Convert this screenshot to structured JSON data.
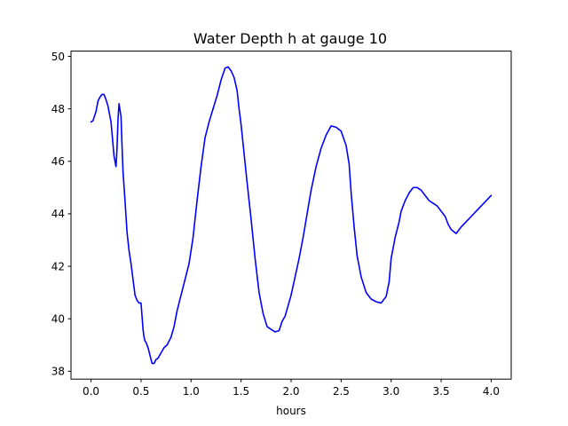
{
  "chart_data": {
    "type": "line",
    "title": "Water Depth h at gauge 10",
    "xlabel": "hours",
    "ylabel": "",
    "xlim": [
      -0.2,
      4.2
    ],
    "ylim": [
      37.7,
      50.2
    ],
    "xticks": [
      0.0,
      0.5,
      1.0,
      1.5,
      2.0,
      2.5,
      3.0,
      3.5,
      4.0
    ],
    "xtick_labels": [
      "0.0",
      "0.5",
      "1.0",
      "1.5",
      "2.0",
      "2.5",
      "3.0",
      "3.5",
      "4.0"
    ],
    "yticks": [
      38,
      40,
      42,
      44,
      46,
      48,
      50
    ],
    "ytick_labels": [
      "38",
      "40",
      "42",
      "44",
      "46",
      "48",
      "50"
    ],
    "grid": false,
    "legend": "none",
    "series": [
      {
        "color": "#0000ff",
        "x": [
          0.0,
          0.02,
          0.05,
          0.07,
          0.09,
          0.11,
          0.13,
          0.15,
          0.17,
          0.2,
          0.23,
          0.25,
          0.26,
          0.27,
          0.28,
          0.3,
          0.31,
          0.32,
          0.34,
          0.36,
          0.38,
          0.4,
          0.42,
          0.44,
          0.46,
          0.48,
          0.5,
          0.51,
          0.52,
          0.53,
          0.54,
          0.55,
          0.57,
          0.59,
          0.61,
          0.63,
          0.65,
          0.67,
          0.7,
          0.73,
          0.76,
          0.8,
          0.83,
          0.86,
          0.9,
          0.94,
          0.98,
          1.02,
          1.06,
          1.1,
          1.14,
          1.18,
          1.22,
          1.26,
          1.3,
          1.34,
          1.37,
          1.4,
          1.43,
          1.46,
          1.48,
          1.5,
          1.53,
          1.56,
          1.6,
          1.64,
          1.68,
          1.72,
          1.76,
          1.8,
          1.84,
          1.88,
          1.91,
          1.94,
          1.97,
          2.0,
          2.04,
          2.08,
          2.12,
          2.16,
          2.2,
          2.25,
          2.3,
          2.35,
          2.4,
          2.45,
          2.5,
          2.55,
          2.58,
          2.6,
          2.63,
          2.66,
          2.7,
          2.75,
          2.8,
          2.85,
          2.9,
          2.95,
          2.98,
          3.0,
          3.04,
          3.08,
          3.1,
          3.14,
          3.18,
          3.22,
          3.26,
          3.3,
          3.34,
          3.38,
          3.42,
          3.46,
          3.5,
          3.54,
          3.57,
          3.6,
          3.65,
          3.7,
          3.75,
          3.8,
          3.85,
          3.9,
          3.95,
          4.0
        ],
        "y": [
          47.5,
          47.55,
          47.9,
          48.3,
          48.45,
          48.55,
          48.55,
          48.35,
          48.1,
          47.5,
          46.2,
          45.8,
          46.5,
          47.6,
          48.2,
          47.7,
          46.6,
          45.6,
          44.5,
          43.3,
          42.6,
          42.1,
          41.5,
          40.9,
          40.7,
          40.6,
          40.6,
          40.1,
          39.6,
          39.3,
          39.15,
          39.1,
          38.9,
          38.6,
          38.3,
          38.3,
          38.45,
          38.5,
          38.7,
          38.9,
          39.0,
          39.3,
          39.7,
          40.3,
          40.9,
          41.5,
          42.1,
          43.1,
          44.5,
          45.8,
          46.9,
          47.5,
          48.0,
          48.5,
          49.1,
          49.55,
          49.6,
          49.45,
          49.2,
          48.7,
          48.0,
          47.4,
          46.3,
          45.2,
          43.8,
          42.3,
          41.0,
          40.2,
          39.7,
          39.6,
          39.5,
          39.55,
          39.9,
          40.1,
          40.5,
          40.9,
          41.6,
          42.3,
          43.1,
          44.0,
          44.9,
          45.8,
          46.5,
          47.0,
          47.35,
          47.3,
          47.15,
          46.6,
          45.9,
          44.8,
          43.5,
          42.4,
          41.6,
          41.0,
          40.75,
          40.65,
          40.6,
          40.85,
          41.4,
          42.3,
          43.1,
          43.7,
          44.1,
          44.5,
          44.8,
          45.0,
          45.0,
          44.9,
          44.7,
          44.5,
          44.4,
          44.3,
          44.1,
          43.9,
          43.6,
          43.4,
          43.25,
          43.5,
          43.7,
          43.9,
          44.1,
          44.3,
          44.5,
          44.7
        ],
        "values_note_removed": null
      }
    ]
  }
}
